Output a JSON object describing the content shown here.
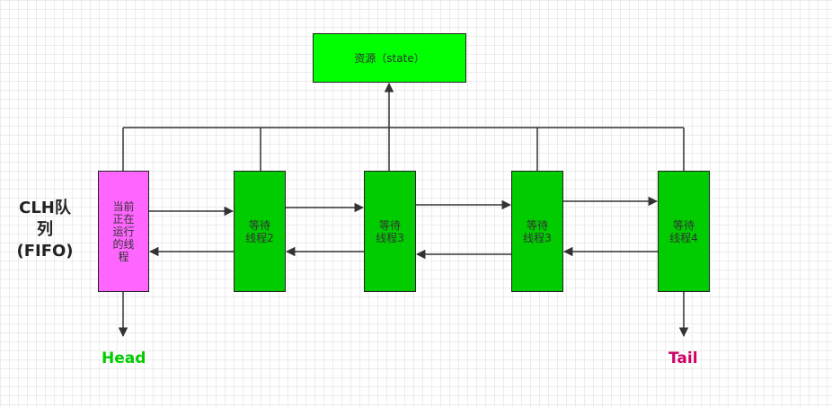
{
  "queue_label": "CLH队\n列\n(FIFO)",
  "nodes": {
    "resource": {
      "label": "资源（state）"
    },
    "current": {
      "label": "当前\n正在\n运行\n的线\n程"
    },
    "wait_a": {
      "label": "等待\n线程2"
    },
    "wait_b": {
      "label": "等待\n线程3"
    },
    "wait_c": {
      "label": "等待\n线程3"
    },
    "wait_d": {
      "label": "等待\n线程4"
    }
  },
  "head_label": "Head",
  "tail_label": "Tail",
  "colors": {
    "resource": "#00ff00",
    "waiting": "#00cc00",
    "current": "#ff66ff",
    "head": "#00cc00",
    "tail": "#cc0066"
  }
}
